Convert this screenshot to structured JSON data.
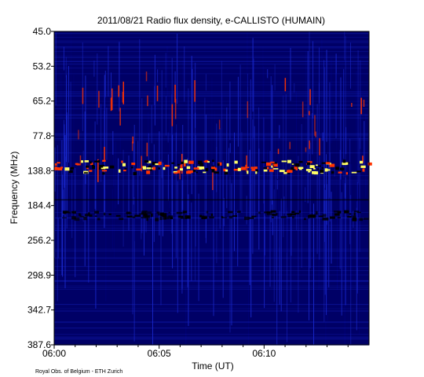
{
  "chart_data": {
    "type": "heatmap",
    "title": "2011/08/21  Radio flux density, e-CALLISTO (HUMAIN)",
    "xlabel": "Time (UT)",
    "ylabel": "Frequency (MHz)",
    "x_ticks": [
      {
        "label": "06:00",
        "minutes": 0
      },
      {
        "label": "06:05",
        "minutes": 5
      },
      {
        "label": "06:10",
        "minutes": 10
      }
    ],
    "x_range_minutes": [
      0,
      15
    ],
    "y_ticks": [
      "45.0",
      "53.2",
      "65.2",
      "77.8",
      "138.8",
      "184.4",
      "256.2",
      "298.9",
      "342.7",
      "387.6"
    ],
    "y_range": [
      45.0,
      387.6
    ],
    "y_direction": "top-to-bottom increasing",
    "colormap": [
      "#00007a",
      "#1b2bd6",
      "#ff3300",
      "#ffff66"
    ],
    "background_color": "#000066",
    "features": [
      {
        "name": "bright-band",
        "frequency_mhz": 138.8
      },
      {
        "name": "dark-band",
        "frequency_mhz": 184.4
      }
    ]
  },
  "credit": "Royal Obs. of Belgium - ETH Zurich"
}
